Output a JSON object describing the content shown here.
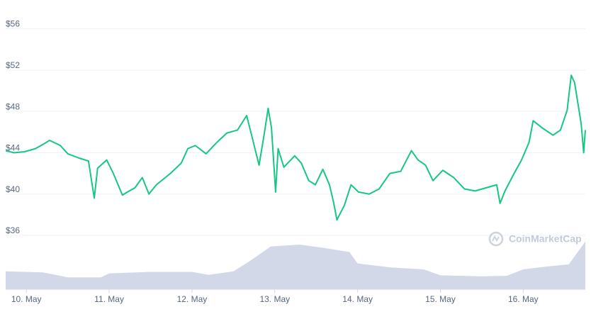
{
  "chart_data": {
    "type": "line",
    "watermark": "CoinMarketCap",
    "xlim": [
      9.75,
      16.75
    ],
    "xticks": [
      {
        "value": 10,
        "label": "10. May"
      },
      {
        "value": 11,
        "label": "11. May"
      },
      {
        "value": 12,
        "label": "12. May"
      },
      {
        "value": 13,
        "label": "13. May"
      },
      {
        "value": 14,
        "label": "14. May"
      },
      {
        "value": 15,
        "label": "15. May"
      },
      {
        "value": 16,
        "label": "16. May"
      }
    ],
    "ylim": [
      34.7,
      57
    ],
    "yticks": [
      {
        "value": 36,
        "label": "$36"
      },
      {
        "value": 40,
        "label": "$40"
      },
      {
        "value": 44,
        "label": "$44"
      },
      {
        "value": 48,
        "label": "$48"
      },
      {
        "value": 52,
        "label": "$52"
      },
      {
        "value": 56,
        "label": "$56"
      }
    ],
    "y2lim": [
      0,
      100
    ],
    "grid": true,
    "series": [
      {
        "color": "#16c784",
        "x": [
          9.75,
          9.85,
          9.98,
          10.11,
          10.2,
          10.28,
          10.41,
          10.5,
          10.63,
          10.75,
          10.82,
          10.86,
          10.97,
          11.05,
          11.16,
          11.22,
          11.31,
          11.4,
          11.48,
          11.57,
          11.74,
          11.87,
          11.95,
          12.04,
          12.17,
          12.3,
          12.42,
          12.55,
          12.66,
          12.72,
          12.81,
          12.87,
          12.92,
          12.96,
          13.01,
          13.04,
          13.11,
          13.24,
          13.32,
          13.41,
          13.49,
          13.58,
          13.66,
          13.71,
          13.75,
          13.84,
          13.92,
          14.01,
          14.14,
          14.26,
          14.39,
          14.52,
          14.65,
          14.73,
          14.82,
          14.91,
          15.03,
          15.16,
          15.29,
          15.42,
          15.55,
          15.68,
          15.72,
          15.78,
          15.89,
          15.98,
          16.07,
          16.12,
          16.23,
          16.36,
          16.45,
          16.53,
          16.58,
          16.62,
          16.66,
          16.7,
          16.73,
          16.75
        ],
        "values": [
          44.2,
          44.0,
          44.1,
          44.4,
          44.8,
          45.2,
          44.7,
          43.9,
          43.5,
          43.2,
          39.6,
          42.5,
          43.3,
          42.0,
          39.9,
          40.2,
          40.6,
          41.6,
          40.0,
          40.9,
          42.0,
          43.0,
          44.4,
          44.7,
          43.9,
          45.0,
          45.9,
          46.2,
          47.6,
          45.7,
          42.8,
          45.7,
          48.3,
          46.4,
          40.2,
          44.4,
          42.6,
          43.7,
          43.0,
          41.3,
          40.9,
          42.4,
          40.9,
          39.2,
          37.5,
          38.9,
          40.9,
          40.2,
          40.0,
          40.5,
          42.0,
          42.2,
          44.2,
          43.3,
          42.8,
          41.3,
          42.3,
          41.6,
          40.5,
          40.3,
          40.6,
          40.9,
          39.1,
          40.3,
          42.0,
          43.3,
          45.0,
          47.1,
          46.4,
          45.7,
          46.2,
          48.1,
          51.5,
          50.8,
          48.8,
          46.8,
          44.0,
          46.2
        ]
      },
      {
        "color": "#d3d8e8",
        "axis": "y2",
        "x": [
          9.75,
          10.2,
          10.5,
          10.9,
          11.0,
          11.5,
          12.0,
          12.2,
          12.5,
          12.7,
          12.95,
          13.3,
          13.6,
          13.9,
          14.0,
          14.4,
          14.8,
          15.0,
          15.5,
          15.8,
          16.0,
          16.3,
          16.55,
          16.75
        ],
        "values": [
          36,
          34,
          24,
          24,
          32,
          35,
          35,
          29,
          36,
          57,
          86,
          90,
          83,
          75,
          52,
          44,
          40,
          28,
          26,
          27,
          40,
          46,
          50,
          96
        ]
      }
    ]
  }
}
